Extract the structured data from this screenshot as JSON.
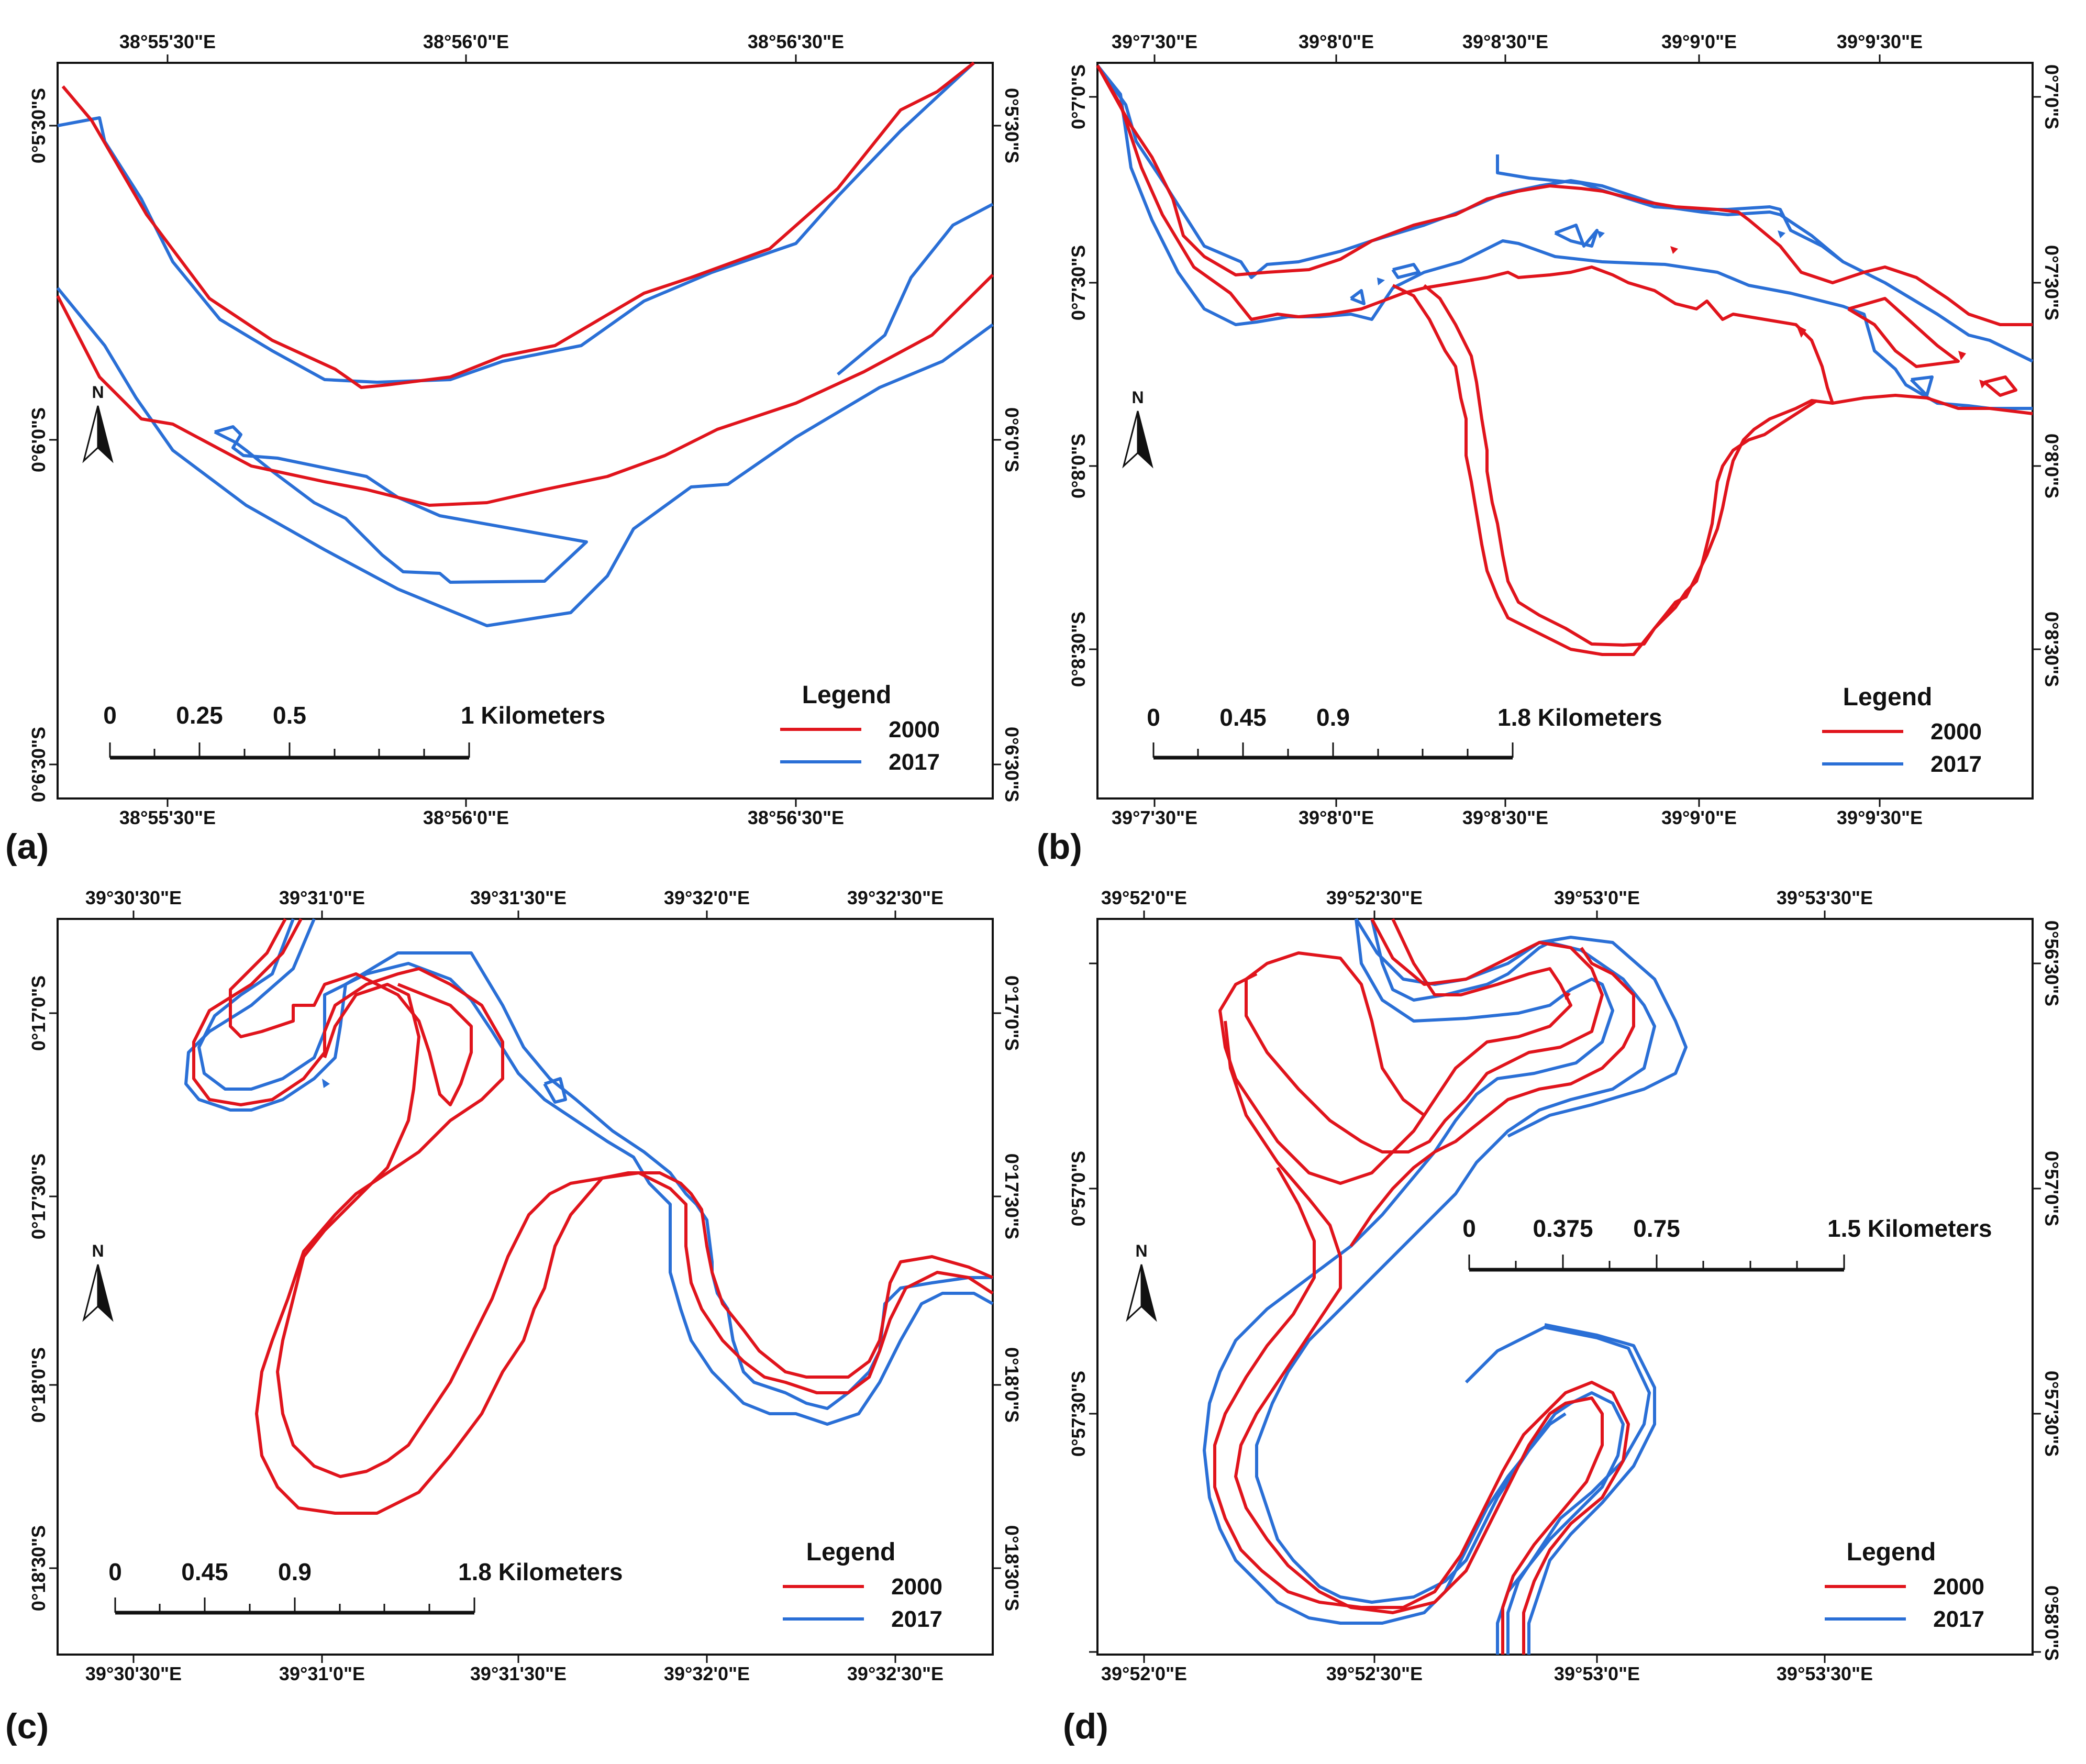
{
  "colors": {
    "year_2000": "#e0141c",
    "year_2017": "#2a6fd6",
    "frame": "#111111"
  },
  "legend": {
    "title": "Legend",
    "items": [
      "2000",
      "2017"
    ]
  },
  "panels": {
    "a": {
      "label": "(a)",
      "lon_ticks": [
        "38°55'30\"E",
        "38°56'0\"E",
        "38°56'30\"E"
      ],
      "lat_ticks": [
        "0°5'30\"S",
        "0°6'0\"S",
        "0°6'30\"S"
      ],
      "scale": [
        "0",
        "0.25",
        "0.5",
        "1 Kilometers"
      ]
    },
    "b": {
      "label": "(b)",
      "lon_ticks": [
        "39°7'30\"E",
        "39°8'0\"E",
        "39°8'30\"E",
        "39°9'0\"E",
        "39°9'30\"E"
      ],
      "lat_ticks": [
        "0°7'0\"S",
        "0°7'30\"S",
        "0°8'0\"S",
        "0°8'30\"S"
      ],
      "scale": [
        "0",
        "0.45",
        "0.9",
        "1.8 Kilometers"
      ]
    },
    "c": {
      "label": "(c)",
      "lon_ticks": [
        "39°30'30\"E",
        "39°31'0\"E",
        "39°31'30\"E",
        "39°32'0\"E",
        "39°32'30\"E"
      ],
      "lat_ticks": [
        "0°17'0\"S",
        "0°17'30\"S",
        "0°18'0\"S",
        "0°18'30\"S"
      ],
      "scale": [
        "0",
        "0.45",
        "0.9",
        "1.8 Kilometers"
      ]
    },
    "d": {
      "label": "(d)",
      "lon_ticks": [
        "39°52'0\"E",
        "39°52'30\"E",
        "39°53'0\"E",
        "39°53'30\"E"
      ],
      "lat_ticks": [
        "0°56'30\"S",
        "0°57'0\"S",
        "0°57'30\"S",
        "0°58'0\"S"
      ],
      "scale": [
        "0",
        "0.375",
        "0.75",
        "1.5 Kilometers"
      ]
    }
  },
  "north_arrow": "N",
  "icons": {
    "north": "north-arrow-icon"
  }
}
